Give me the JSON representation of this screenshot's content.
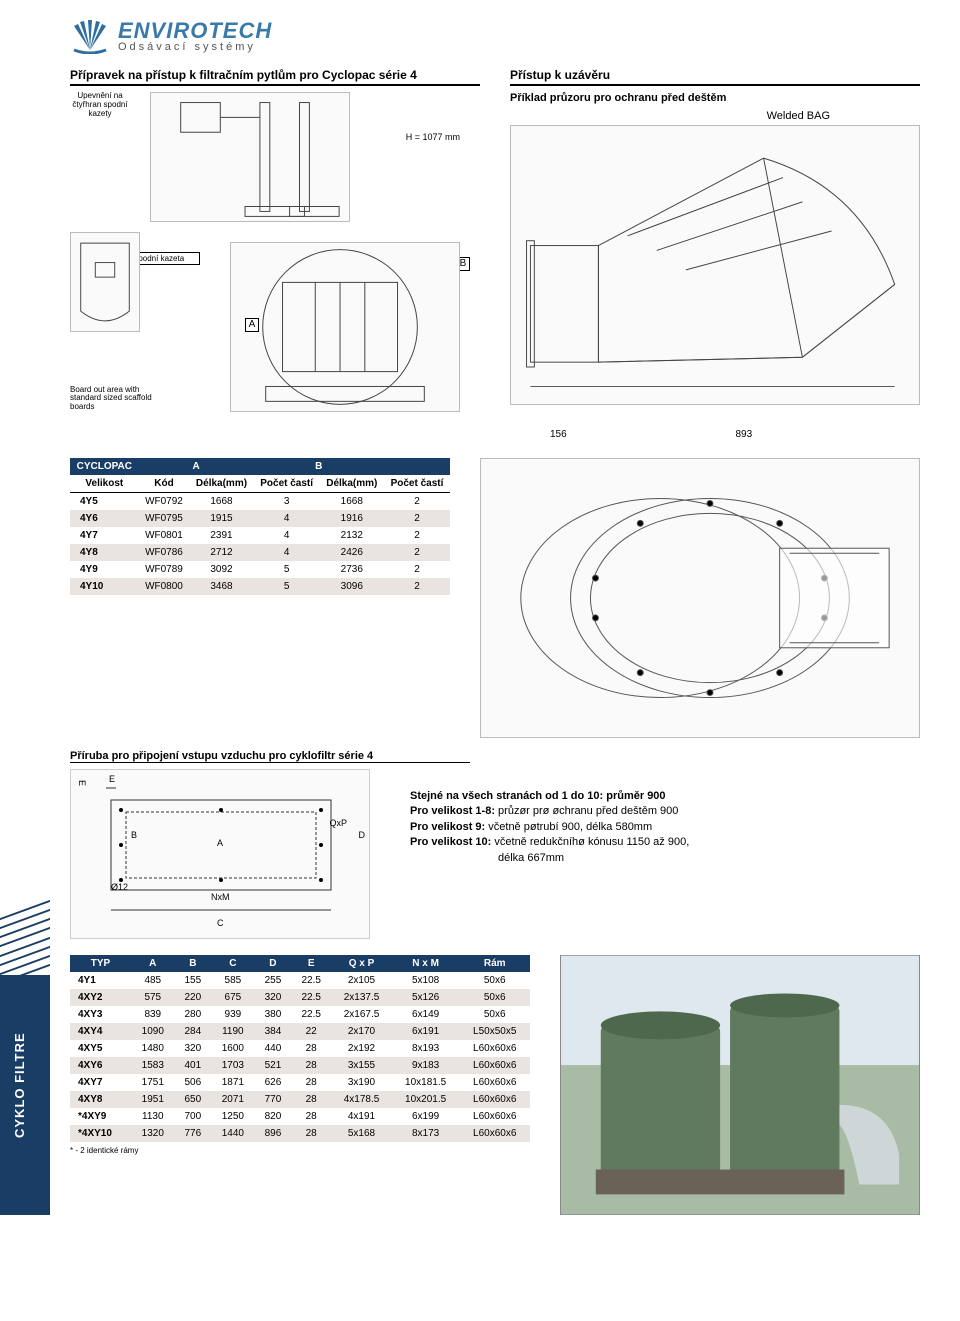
{
  "logo": {
    "main": "ENVIROTECH",
    "sub": "Odsávací systémy",
    "fan_color": "#2e6fa0"
  },
  "side_tab": "CYKLO FILTRE",
  "section1": {
    "title": "Přípravek na přístup k filtračním pytlům pro Cyclopac série 4",
    "callout_top": "Upevnění na čtyřhran spodní kazety",
    "callout_mid": "Spodní kazeta",
    "callout_bot": "Board out area with standard sized scaffold boards",
    "dim_h": "H = 1077 mm",
    "dim_a": "A",
    "dim_b": "B"
  },
  "section2": {
    "title": "Přístup k uzávěru",
    "subtitle": "Příklad průzoru pro ochranu před deštěm",
    "welded": "Welded BAG",
    "dim_156": "156",
    "dim_893": "893"
  },
  "table1": {
    "head_top": {
      "c0": "CYCLOPAC",
      "c1": "A",
      "c2": "B"
    },
    "head_sub": [
      "Velikost",
      "Kód",
      "Délka(mm)",
      "Počet častí",
      "Délka(mm)",
      "Počet častí"
    ],
    "rows": [
      {
        "size": "4Y5",
        "code": "WF0792",
        "a_len": "1668",
        "a_cnt": "3",
        "b_len": "1668",
        "b_cnt": "2"
      },
      {
        "size": "4Y6",
        "code": "WF0795",
        "a_len": "1915",
        "a_cnt": "4",
        "b_len": "1916",
        "b_cnt": "2"
      },
      {
        "size": "4Y7",
        "code": "WF0801",
        "a_len": "2391",
        "a_cnt": "4",
        "b_len": "2132",
        "b_cnt": "2"
      },
      {
        "size": "4Y8",
        "code": "WF0786",
        "a_len": "2712",
        "a_cnt": "4",
        "b_len": "2426",
        "b_cnt": "2"
      },
      {
        "size": "4Y9",
        "code": "WF0789",
        "a_len": "3092",
        "a_cnt": "5",
        "b_len": "2736",
        "b_cnt": "2"
      },
      {
        "size": "4Y10",
        "code": "WF0800",
        "a_len": "3468",
        "a_cnt": "5",
        "b_len": "3096",
        "b_cnt": "2"
      }
    ]
  },
  "flange_title": "Příruba pro připojení vstupu vzduchu pro cyklofiltr série 4",
  "flange_draw_labels": {
    "E": "E",
    "A": "A",
    "B": "B",
    "C": "C",
    "D": "D",
    "QxP": "QxP",
    "O12": "Ø12",
    "NxM": "NxM"
  },
  "flange_text": {
    "line1": "Stejné na všech stranách od 1 do 10: průměr 900",
    "l2_b": "Pro velikost 1-8:",
    "l2": "průzør prø øchranu před deštěm 900",
    "l3_b": "Pro velikost 9:",
    "l3": "včetně pøtrubí 900, délka 580mm",
    "l4_b": "Pro velikost 10:",
    "l4": "včetně redukčníhø kónusu 1150 až 900,",
    "l5": "délka 667mm"
  },
  "table2": {
    "head": [
      "TYP",
      "A",
      "B",
      "C",
      "D",
      "E",
      "Q x P",
      "N x M",
      "Rám"
    ],
    "rows": [
      {
        "typ": "4Y1",
        "A": "485",
        "B": "155",
        "C": "585",
        "D": "255",
        "E": "22.5",
        "QxP": "2x105",
        "NxM": "5x108",
        "Ram": "50x6"
      },
      {
        "typ": "4XY2",
        "A": "575",
        "B": "220",
        "C": "675",
        "D": "320",
        "E": "22.5",
        "QxP": "2x137.5",
        "NxM": "5x126",
        "Ram": "50x6"
      },
      {
        "typ": "4XY3",
        "A": "839",
        "B": "280",
        "C": "939",
        "D": "380",
        "E": "22.5",
        "QxP": "2x167.5",
        "NxM": "6x149",
        "Ram": "50x6"
      },
      {
        "typ": "4XY4",
        "A": "1090",
        "B": "284",
        "C": "1190",
        "D": "384",
        "E": "22",
        "QxP": "2x170",
        "NxM": "6x191",
        "Ram": "L50x50x5"
      },
      {
        "typ": "4XY5",
        "A": "1480",
        "B": "320",
        "C": "1600",
        "D": "440",
        "E": "28",
        "QxP": "2x192",
        "NxM": "8x193",
        "Ram": "L60x60x6"
      },
      {
        "typ": "4XY6",
        "A": "1583",
        "B": "401",
        "C": "1703",
        "D": "521",
        "E": "28",
        "QxP": "3x155",
        "NxM": "9x183",
        "Ram": "L60x60x6"
      },
      {
        "typ": "4XY7",
        "A": "1751",
        "B": "506",
        "C": "1871",
        "D": "626",
        "E": "28",
        "QxP": "3x190",
        "NxM": "10x181.5",
        "Ram": "L60x60x6"
      },
      {
        "typ": "4XY8",
        "A": "1951",
        "B": "650",
        "C": "2071",
        "D": "770",
        "E": "28",
        "QxP": "4x178.5",
        "NxM": "10x201.5",
        "Ram": "L60x60x6"
      },
      {
        "typ": "*4XY9",
        "A": "1130",
        "B": "700",
        "C": "1250",
        "D": "820",
        "E": "28",
        "QxP": "4x191",
        "NxM": "6x199",
        "Ram": "L60x60x6"
      },
      {
        "typ": "*4XY10",
        "A": "1320",
        "B": "776",
        "C": "1440",
        "D": "896",
        "E": "28",
        "QxP": "5x168",
        "NxM": "8x173",
        "Ram": "L60x60x6"
      }
    ],
    "footnote": "* - 2 identické rámy"
  },
  "colors": {
    "header_bg": "#1a3d66",
    "row_alt": "#e9e4df"
  }
}
